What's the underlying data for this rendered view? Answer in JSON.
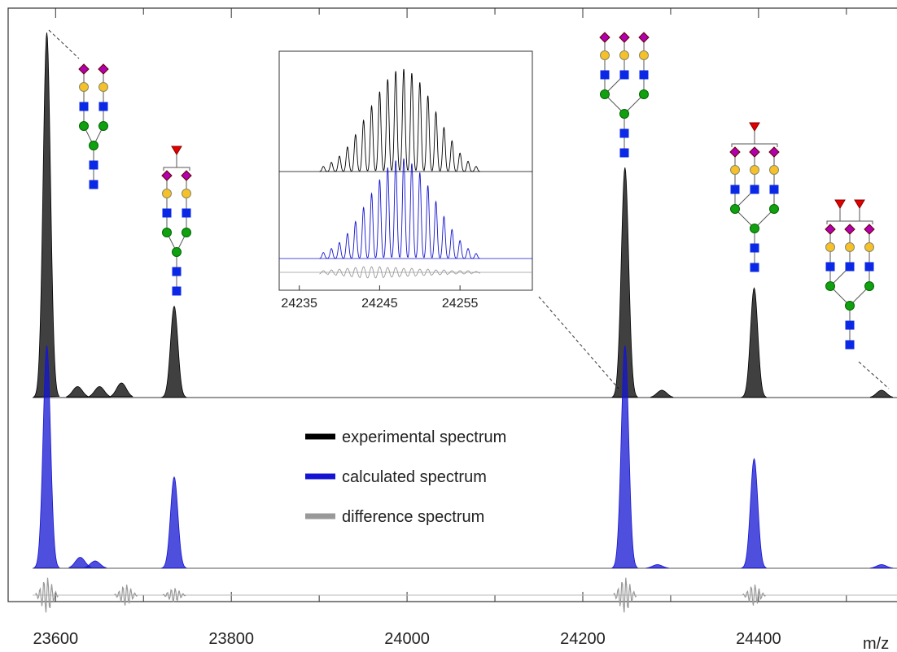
{
  "chart_data": [
    {
      "type": "spectrum",
      "x_label": "m/z",
      "xlim": [
        23546,
        24565
      ],
      "xticks": [
        23600,
        23800,
        24000,
        24200,
        24400
      ],
      "ylim": [
        0,
        100
      ],
      "series": [
        {
          "name": "experimental spectrum",
          "color": "#000000",
          "x": [
            23590,
            23625,
            23650,
            23675,
            23735,
            24248,
            24290,
            24395,
            24540
          ],
          "values": [
            100,
            3,
            3,
            4,
            25,
            63,
            2,
            30,
            2
          ]
        },
        {
          "name": "calculated spectrum",
          "color": "#1414d2",
          "x": [
            23590,
            23628,
            23645,
            23735,
            24248,
            24285,
            24395,
            24540
          ],
          "values": [
            61,
            3,
            2,
            25,
            61,
            1,
            30,
            1
          ]
        },
        {
          "name": "difference spectrum",
          "color": "#999999",
          "x": [
            23590,
            23680,
            23735,
            24248,
            24395
          ],
          "values": [
            5,
            3,
            2,
            5,
            3
          ]
        }
      ]
    },
    {
      "type": "isotope-inset",
      "xlim": [
        24232.5,
        24264
      ],
      "xticks": [
        24235,
        24245,
        24255
      ],
      "ylim": [
        0,
        100
      ],
      "x": [
        24238,
        24239,
        24240,
        24241,
        24242,
        24243,
        24244,
        24245,
        24246,
        24247,
        24248,
        24249,
        24250,
        24251,
        24252,
        24253,
        24254,
        24255,
        24256,
        24257
      ],
      "series": [
        {
          "color": "#000000",
          "values": [
            5,
            9,
            15,
            24,
            36,
            50,
            64,
            78,
            90,
            98,
            100,
            96,
            87,
            74,
            58,
            43,
            30,
            18,
            10,
            5
          ]
        },
        {
          "color": "#1414d2",
          "values": [
            6,
            10,
            16,
            25,
            37,
            51,
            65,
            79,
            91,
            98,
            100,
            95,
            86,
            73,
            57,
            42,
            29,
            18,
            10,
            5
          ]
        },
        {
          "color": "#999999",
          "values": [
            2,
            3,
            4,
            5,
            6,
            7,
            7,
            7,
            6,
            6,
            5,
            5,
            4,
            4,
            3,
            3,
            2,
            2,
            2,
            1
          ]
        }
      ]
    }
  ]
}
